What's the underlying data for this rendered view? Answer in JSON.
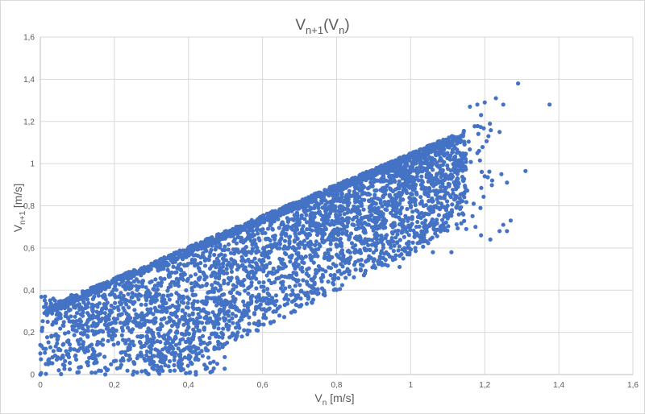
{
  "chart_data": {
    "type": "scatter",
    "title": "Vn+1(Vn)",
    "title_parts": {
      "main": "V",
      "sub1": "n+1",
      "mid": "(V",
      "sub2": "n",
      "end": ")"
    },
    "xlabel": "Vn [m/s]",
    "xlabel_parts": {
      "main": "V",
      "sub": "n",
      "unit": " [m/s]"
    },
    "ylabel": "Vn+1 [m/s]",
    "ylabel_parts": {
      "main": "V",
      "sub": "n+1",
      "unit": " [m/s]"
    },
    "xlim": [
      0,
      1.6
    ],
    "ylim": [
      0,
      1.6
    ],
    "x_ticks": [
      "0",
      "0,2",
      "0,4",
      "0,6",
      "0,8",
      "1",
      "1,2",
      "1,4",
      "1,6"
    ],
    "y_ticks": [
      "0",
      "0,2",
      "0,4",
      "0,6",
      "0,8",
      "1",
      "1,2",
      "1,4",
      "1,6"
    ],
    "grid": true,
    "legend": "none",
    "marker_color": "#4472C4",
    "series": [
      {
        "values_description_omitted": false,
        "points": [
          [
            1.29,
            1.38
          ],
          [
            1.375,
            1.28
          ],
          [
            1.23,
            1.31
          ],
          [
            1.25,
            1.28
          ],
          [
            1.31,
            0.965
          ],
          [
            1.24,
            1.15
          ],
          [
            1.21,
            1.13
          ],
          [
            1.22,
            0.92
          ],
          [
            1.245,
            0.95
          ],
          [
            1.26,
            0.91
          ],
          [
            1.27,
            0.73
          ],
          [
            1.25,
            0.71
          ],
          [
            1.24,
            0.68
          ],
          [
            1.215,
            0.64
          ],
          [
            1.26,
            0.68
          ],
          [
            1.2,
            0.94
          ],
          [
            1.18,
            1.05
          ],
          [
            1.175,
            0.7
          ],
          [
            1.17,
            0.81
          ],
          [
            1.19,
            0.66
          ],
          [
            1.16,
            1.27
          ],
          [
            1.18,
            1.28
          ],
          [
            1.2,
            1.29
          ],
          [
            1.19,
            1.23
          ],
          [
            1.14,
            1.13
          ],
          [
            1.12,
            0.96
          ],
          [
            1.11,
            0.58
          ],
          [
            1.15,
            0.69
          ],
          [
            1.1,
            0.86
          ],
          [
            1.1,
            0.74
          ],
          [
            1.06,
            1.0
          ],
          [
            1.08,
            0.99
          ],
          [
            1.06,
            0.91
          ],
          [
            1.06,
            0.58
          ],
          [
            1.02,
            0.66
          ],
          [
            1.04,
            0.73
          ],
          [
            1.0,
            0.8
          ],
          [
            0.98,
            0.55
          ],
          [
            0.97,
            0.51
          ],
          [
            0.96,
            0.76
          ],
          [
            0.05,
            0.02
          ],
          [
            0.04,
            0.09
          ],
          [
            0.03,
            0.18
          ],
          [
            0.02,
            0.25
          ],
          [
            0.01,
            0.32
          ],
          [
            0.015,
            0.05
          ],
          [
            0.0,
            0.1
          ],
          [
            0.0,
            0.14
          ],
          [
            0.1,
            0.01
          ],
          [
            0.18,
            0.02
          ],
          [
            0.25,
            0.0
          ],
          [
            0.32,
            0.01
          ],
          [
            0.38,
            0.02
          ],
          [
            0.42,
            0.0
          ],
          [
            0.45,
            0.03
          ],
          [
            0.0,
            0.0
          ],
          [
            0.035,
            0.36
          ]
        ]
      }
    ]
  }
}
